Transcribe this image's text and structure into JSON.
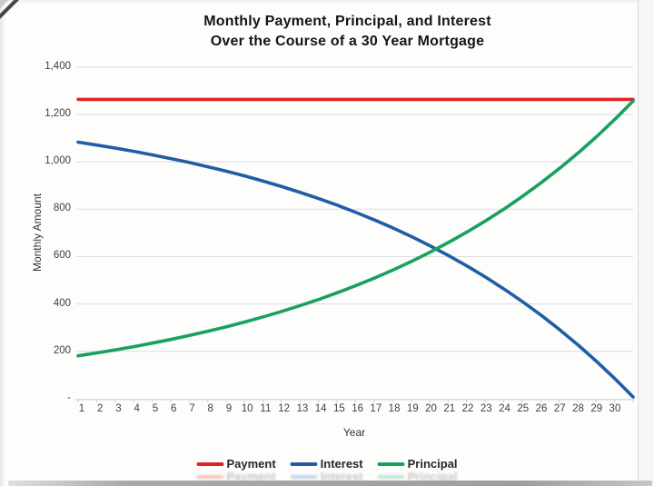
{
  "page": {
    "title_line1": "Monthly Payment, Principal, and Interest",
    "title_line2": "Over the Course of a 30 Year Mortgage"
  },
  "chart_data": {
    "type": "line",
    "title": "Monthly Payment, Principal, and Interest Over the Course of a 30 Year Mortgage",
    "xlabel": "Year",
    "ylabel": "Monthly Amount",
    "xlim": [
      1,
      30.92
    ],
    "ylim": [
      0,
      1400
    ],
    "grid": "horizontal",
    "legend_position": "bottom",
    "y_ticks": {
      "values": [
        0,
        200,
        400,
        600,
        800,
        1000,
        1200,
        1400
      ],
      "labels": [
        "-",
        "200",
        "400",
        "600",
        "800",
        "1,000",
        "1,200",
        "1,400"
      ]
    },
    "x_ticks": [
      "1",
      "2",
      "3",
      "4",
      "5",
      "6",
      "7",
      "8",
      "9",
      "10",
      "11",
      "12",
      "13",
      "14",
      "15",
      "16",
      "17",
      "18",
      "19",
      "20",
      "21",
      "22",
      "23",
      "24",
      "25",
      "26",
      "27",
      "28",
      "29",
      "30"
    ],
    "x": [
      1,
      2,
      3,
      4,
      5,
      6,
      7,
      8,
      9,
      10,
      11,
      12,
      13,
      14,
      15,
      16,
      17,
      18,
      19,
      20,
      21,
      22,
      23,
      24,
      25,
      26,
      27,
      28,
      29,
      30,
      30.92
    ],
    "series": [
      {
        "name": "Payment",
        "color": "#df2424",
        "values": [
          1264.1,
          1264.1,
          1264.1,
          1264.1,
          1264.1,
          1264.1,
          1264.1,
          1264.1,
          1264.1,
          1264.1,
          1264.1,
          1264.1,
          1264.1,
          1264.1,
          1264.1,
          1264.1,
          1264.1,
          1264.1,
          1264.1,
          1264.1,
          1264.1,
          1264.1,
          1264.1,
          1264.1,
          1264.1,
          1264.1,
          1264.1,
          1264.1,
          1264.1,
          1264.1,
          1264.1
        ]
      },
      {
        "name": "Interest",
        "color": "#1f5da6",
        "values": [
          1083.3,
          1071.2,
          1058.3,
          1044.5,
          1029.8,
          1014.1,
          997.4,
          979.5,
          960.4,
          940.1,
          918.4,
          895.3,
          870.5,
          844.2,
          816.1,
          786.1,
          754.0,
          719.9,
          683.4,
          644.5,
          603.0,
          558.8,
          511.5,
          461.1,
          407.3,
          350.0,
          288.7,
          223.4,
          153.7,
          79.3,
          6.8
        ]
      },
      {
        "name": "Principal",
        "color": "#18a15d",
        "values": [
          180.8,
          192.9,
          205.8,
          219.6,
          234.3,
          250.0,
          266.8,
          284.6,
          303.7,
          324.0,
          345.7,
          368.9,
          393.6,
          420.0,
          448.1,
          478.1,
          510.1,
          544.3,
          580.7,
          619.6,
          661.1,
          705.4,
          752.6,
          803.0,
          856.8,
          914.2,
          975.4,
          1040.7,
          1110.4,
          1184.8,
          1257.3
        ]
      }
    ]
  }
}
